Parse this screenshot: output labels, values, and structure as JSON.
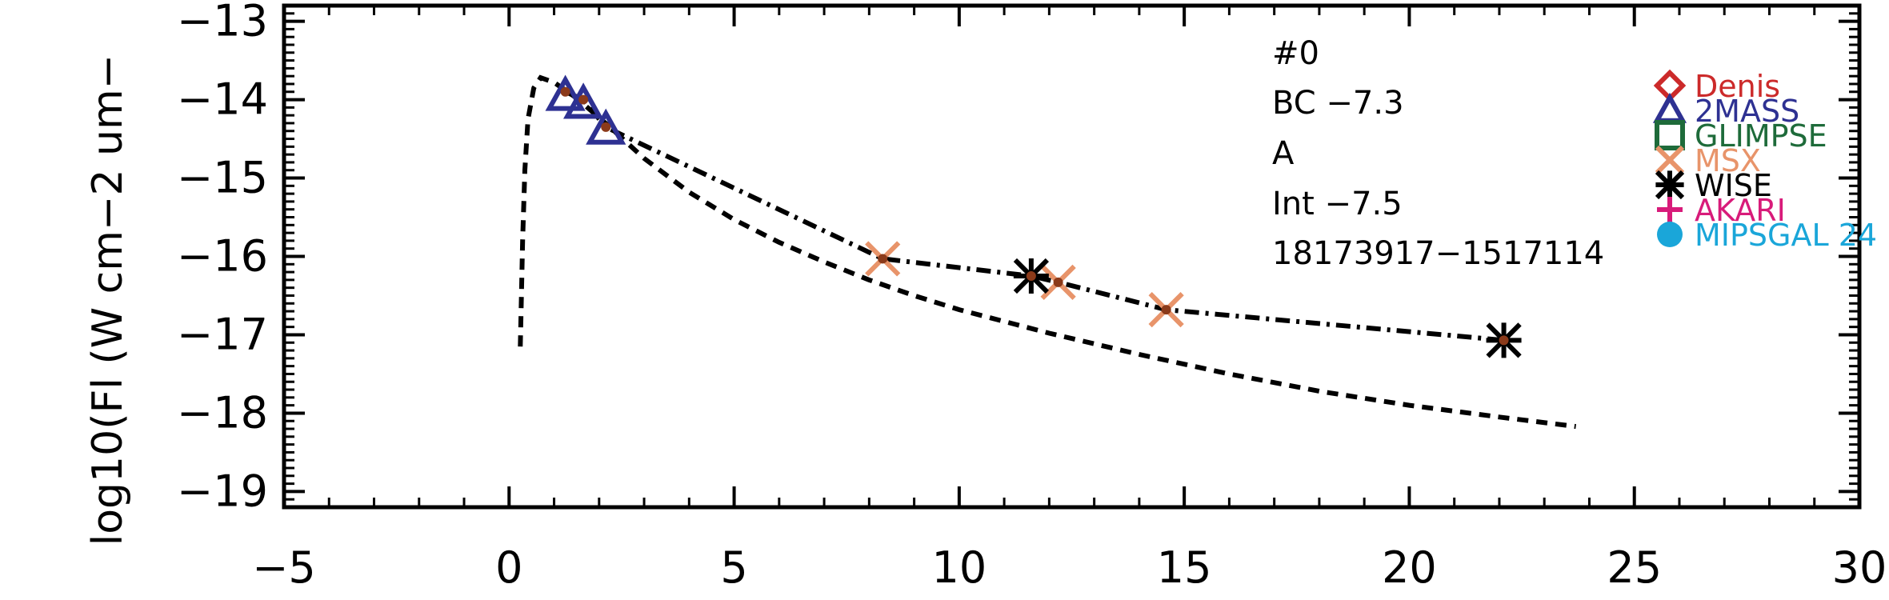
{
  "chart_data": {
    "type": "scatter",
    "title": "",
    "xlabel": "",
    "ylabel": "log10(Fl (W cm−2 um−",
    "xlim": [
      -5,
      30
    ],
    "ylim": [
      -19.2,
      -12.8
    ],
    "x_ticks": [
      {
        "value": -5,
        "label": "−5"
      },
      {
        "value": 0,
        "label": "0"
      },
      {
        "value": 5,
        "label": "5"
      },
      {
        "value": 10,
        "label": "10"
      },
      {
        "value": 15,
        "label": "15"
      },
      {
        "value": 20,
        "label": "20"
      },
      {
        "value": 25,
        "label": "25"
      },
      {
        "value": 30,
        "label": "30"
      }
    ],
    "y_ticks": [
      {
        "value": -13,
        "label": "−13"
      },
      {
        "value": -14,
        "label": "−14"
      },
      {
        "value": -15,
        "label": "−15"
      },
      {
        "value": -16,
        "label": "−16"
      },
      {
        "value": -17,
        "label": "−17"
      },
      {
        "value": -18,
        "label": "−18"
      },
      {
        "value": -19,
        "label": "−19"
      }
    ],
    "grid": false,
    "legend_position": "right",
    "annotations": [
      "#0",
      "BC  −7.3",
      "A",
      "Int  −7.5",
      "18173917−1517114"
    ],
    "lines": [
      {
        "style": "dashed",
        "color": "#000000",
        "x": [
          0.25,
          0.27,
          0.3,
          0.35,
          0.42,
          0.55,
          0.7,
          1.0,
          1.5,
          2.2,
          3.0,
          4.0,
          5.0,
          6.0,
          7.0,
          8.0,
          9.0,
          10.0,
          12.0,
          14.0,
          16.0,
          18.0,
          20.0,
          22.0,
          23.7
        ],
        "y": [
          -17.15,
          -16.6,
          -15.8,
          -14.9,
          -14.25,
          -13.85,
          -13.72,
          -13.78,
          -13.98,
          -14.33,
          -14.75,
          -15.18,
          -15.53,
          -15.82,
          -16.07,
          -16.3,
          -16.5,
          -16.68,
          -16.98,
          -17.25,
          -17.5,
          -17.72,
          -17.9,
          -18.05,
          -18.17
        ]
      },
      {
        "style": "dash-dot",
        "color": "#000000",
        "x": [
          1.25,
          1.65,
          2.15,
          8.3,
          11.6,
          12.2,
          14.6,
          22.1
        ],
        "y": [
          -13.9,
          -14.0,
          -14.35,
          -16.03,
          -16.25,
          -16.33,
          -16.68,
          -17.07
        ]
      }
    ],
    "series": [
      {
        "name": "Denis",
        "marker": "diamond",
        "color": "#cc2a2a",
        "x": [],
        "y": []
      },
      {
        "name": "2MASS",
        "marker": "triangle",
        "color": "#2e3192",
        "x": [
          1.25,
          1.65,
          2.15
        ],
        "y": [
          -13.95,
          -14.05,
          -14.38
        ]
      },
      {
        "name": "GLIMPSE",
        "marker": "square",
        "color": "#1e6b3a",
        "x": [],
        "y": []
      },
      {
        "name": "MSX",
        "marker": "x",
        "color": "#e8946a",
        "x": [
          8.3,
          12.2,
          14.6
        ],
        "y": [
          -16.03,
          -16.33,
          -16.68
        ]
      },
      {
        "name": "WISE",
        "marker": "asterisk",
        "color": "#000000",
        "x": [
          11.6,
          22.1
        ],
        "y": [
          -16.25,
          -17.07
        ]
      },
      {
        "name": "AKARI",
        "marker": "plus",
        "color": "#d81b7a",
        "x": [],
        "y": []
      },
      {
        "name": "MIPSGAL 24",
        "marker": "circle",
        "color": "#1aa6d9",
        "x": [],
        "y": []
      }
    ],
    "model_points": {
      "color": "#8b3a1a",
      "x": [
        1.25,
        1.65,
        2.15,
        8.3,
        11.6,
        12.2,
        14.6,
        22.1
      ],
      "y": [
        -13.9,
        -14.0,
        -14.35,
        -16.03,
        -16.25,
        -16.33,
        -16.68,
        -17.07
      ]
    }
  }
}
